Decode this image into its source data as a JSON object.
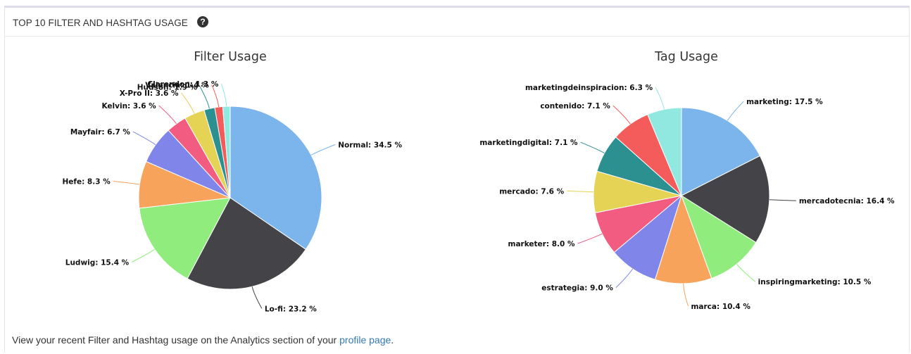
{
  "panel": {
    "title": "TOP 10 FILTER AND HASHTAG USAGE",
    "help_glyph": "?"
  },
  "footer": {
    "text": "View your recent Filter and Hashtag usage on the Analytics section of your ",
    "link_text": "profile page",
    "suffix": "."
  },
  "chart_data": [
    {
      "type": "pie",
      "title": "Filter Usage",
      "categories": [
        "Normal",
        "Lo-fi",
        "Ludwig",
        "Hefe",
        "Mayfair",
        "Kelvin",
        "X-Pro II",
        "Hudson",
        "Valencia",
        "Clarendon"
      ],
      "values": [
        34.5,
        23.2,
        15.4,
        8.3,
        6.7,
        3.6,
        3.6,
        1.9,
        1.4,
        1.3
      ],
      "unit": " %",
      "colors": [
        "#7cb5ec",
        "#434348",
        "#90ed7d",
        "#f7a35c",
        "#8085e9",
        "#f15c80",
        "#e4d354",
        "#2b908f",
        "#f45b5b",
        "#91e8e1"
      ]
    },
    {
      "type": "pie",
      "title": "Tag Usage",
      "categories": [
        "marketing",
        "mercadotecnia",
        "inspiringmarketing",
        "marca",
        "estrategia",
        "marketer",
        "mercado",
        "marketingdigital",
        "contenido",
        "marketingdeinspiracion"
      ],
      "values": [
        17.5,
        16.4,
        10.5,
        10.4,
        9.0,
        8.0,
        7.6,
        7.1,
        7.1,
        6.3
      ],
      "unit": " %",
      "colors": [
        "#7cb5ec",
        "#434348",
        "#90ed7d",
        "#f7a35c",
        "#8085e9",
        "#f15c80",
        "#e4d354",
        "#2b908f",
        "#f45b5b",
        "#91e8e1"
      ]
    }
  ]
}
